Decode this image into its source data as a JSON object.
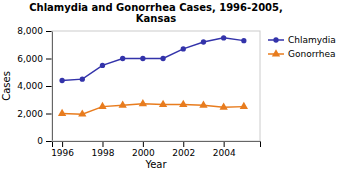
{
  "chart_data": {
    "type": "line",
    "title": "Chlamydia and Gonorrhea Cases, 1996-2005,\nKansas",
    "xlabel": "Year",
    "ylabel": "Cases",
    "x": [
      1996,
      1997,
      1998,
      1999,
      2000,
      2001,
      2002,
      2003,
      2004,
      2005
    ],
    "series": [
      {
        "name": "Chlamydia",
        "color": "#3333aa",
        "marker": "circle",
        "values": [
          4400,
          4500,
          5500,
          6000,
          6000,
          6000,
          6700,
          7200,
          7500,
          7300
        ]
      },
      {
        "name": "Gonorrhea",
        "color": "#e87c1e",
        "marker": "triangle",
        "values": [
          2000,
          1950,
          2500,
          2600,
          2700,
          2650,
          2650,
          2600,
          2450,
          2500
        ]
      }
    ],
    "xlim": [
      1995.5,
      2005.8
    ],
    "xticks": [
      1996,
      1998,
      2000,
      2002,
      2004
    ],
    "ylim": [
      0,
      8000
    ],
    "yticks": [
      0,
      {
        "value": 2000,
        "label": "2,000"
      },
      {
        "value": 4000,
        "label": "4,000"
      },
      {
        "value": 6000,
        "label": "6,000"
      },
      {
        "value": 8000,
        "label": "8,000"
      }
    ],
    "legend": "upper right",
    "grid": false
  }
}
